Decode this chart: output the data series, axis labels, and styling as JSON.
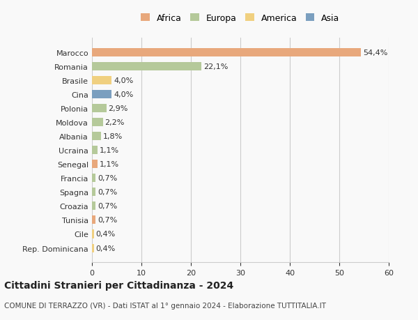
{
  "countries": [
    "Marocco",
    "Romania",
    "Brasile",
    "Cina",
    "Polonia",
    "Moldova",
    "Albania",
    "Ucraina",
    "Senegal",
    "Francia",
    "Spagna",
    "Croazia",
    "Tunisia",
    "Cile",
    "Rep. Dominicana"
  ],
  "values": [
    54.4,
    22.1,
    4.0,
    4.0,
    2.9,
    2.2,
    1.8,
    1.1,
    1.1,
    0.7,
    0.7,
    0.7,
    0.7,
    0.4,
    0.4
  ],
  "labels": [
    "54,4%",
    "22,1%",
    "4,0%",
    "4,0%",
    "2,9%",
    "2,2%",
    "1,8%",
    "1,1%",
    "1,1%",
    "0,7%",
    "0,7%",
    "0,7%",
    "0,7%",
    "0,4%",
    "0,4%"
  ],
  "continents": [
    "Africa",
    "Europa",
    "America",
    "Asia",
    "Europa",
    "Europa",
    "Europa",
    "Europa",
    "Africa",
    "Europa",
    "Europa",
    "Europa",
    "Africa",
    "America",
    "America"
  ],
  "colors": {
    "Africa": "#E8A87C",
    "Europa": "#B5C99A",
    "America": "#F0D080",
    "Asia": "#7B9FBF"
  },
  "legend_order": [
    "Africa",
    "Europa",
    "America",
    "Asia"
  ],
  "title": "Cittadini Stranieri per Cittadinanza - 2024",
  "subtitle": "COMUNE DI TERRAZZO (VR) - Dati ISTAT al 1° gennaio 2024 - Elaborazione TUTTITALIA.IT",
  "xlim": [
    0,
    60
  ],
  "xticks": [
    0,
    10,
    20,
    30,
    40,
    50,
    60
  ],
  "background_color": "#f9f9f9",
  "grid_color": "#cccccc"
}
